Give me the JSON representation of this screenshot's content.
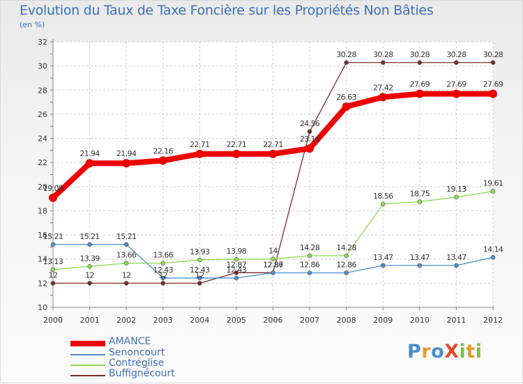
{
  "chart_data": {
    "type": "line",
    "title": "Evolution du Taux de Taxe Foncière sur les Propriétés Non Bâties",
    "unit_label": "(en %)",
    "xlabel": "",
    "ylabel": "",
    "categories": [
      "2000",
      "2001",
      "2002",
      "2003",
      "2004",
      "2005",
      "2006",
      "2007",
      "2008",
      "2009",
      "2010",
      "2011",
      "2012"
    ],
    "ylim": [
      10,
      32
    ],
    "yticks": [
      10,
      12,
      14,
      16,
      18,
      20,
      22,
      24,
      26,
      28,
      30,
      32
    ],
    "grid": true,
    "series": [
      {
        "name": "AMANCE",
        "color": "#ee0000",
        "values": [
          19.08,
          21.94,
          21.94,
          22.16,
          22.71,
          22.71,
          22.71,
          23.16,
          26.63,
          27.42,
          27.69,
          27.69,
          27.69
        ],
        "labels": [
          "19.08",
          "21.94",
          "21.94",
          "22.16",
          "22.71",
          "22.71",
          "22.71",
          "23.16",
          "26.63",
          "27.42",
          "27.69",
          "27.69",
          "27.69"
        ]
      },
      {
        "name": "Senoncourt",
        "color": "#4a8ecb",
        "values": [
          15.21,
          15.21,
          15.21,
          12.43,
          12.43,
          12.43,
          12.86,
          12.86,
          12.86,
          13.47,
          13.47,
          13.47,
          14.14
        ],
        "labels": [
          "15.21",
          "15.21",
          "15.21",
          "12.43",
          "12.43",
          "12.43",
          "12.86",
          "12.86",
          "12.86",
          "13.47",
          "13.47",
          "13.47",
          "14.14"
        ]
      },
      {
        "name": "Contréglise",
        "color": "#8dd94f",
        "values": [
          13.13,
          13.39,
          13.66,
          13.66,
          13.93,
          13.98,
          14,
          14.28,
          14.28,
          18.56,
          18.75,
          19.13,
          19.61
        ],
        "labels": [
          "13.13",
          "13.39",
          "13.66",
          "13.66",
          "13.93",
          "13.98",
          "14",
          "14.28",
          "14.28",
          "18.56",
          "18.75",
          "19.13",
          "19.61"
        ]
      },
      {
        "name": "Buffignécourt",
        "color": "#7a2a2a",
        "values": [
          12,
          12,
          12,
          12,
          12,
          12.87,
          12.87,
          24.56,
          30.28,
          30.28,
          30.28,
          30.28,
          30.28
        ],
        "labels": [
          "12",
          "12",
          "12",
          "12",
          "12",
          "12.87",
          "12.87",
          "24.56",
          "30.28",
          "30.28",
          "30.28",
          "30.28",
          "30.28"
        ]
      }
    ]
  },
  "logo": {
    "text": "ProXiti",
    "letters": [
      {
        "ch": "P",
        "color": "#4a8ecb"
      },
      {
        "ch": "r",
        "color": "#e39a2e"
      },
      {
        "ch": "o",
        "color": "#4a8ecb"
      },
      {
        "ch": "X",
        "color": "#e34b2b"
      },
      {
        "ch": "i",
        "color": "#7ac143"
      },
      {
        "ch": "t",
        "color": "#e39a2e"
      },
      {
        "ch": "i",
        "color": "#7ac143"
      }
    ]
  }
}
